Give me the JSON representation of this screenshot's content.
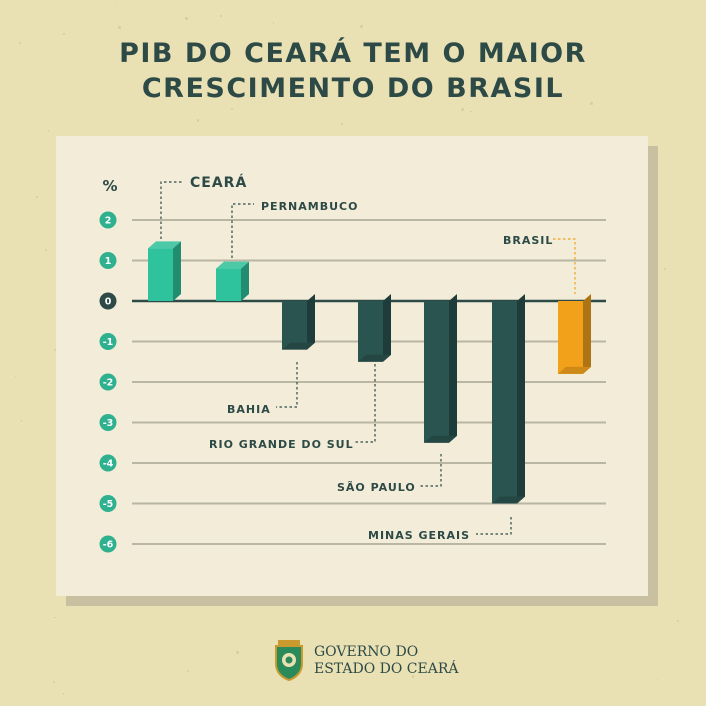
{
  "header": {
    "title_line1": "PIB DO CEARÁ TEM O MAIOR",
    "title_line2": "CRESCIMENTO DO BRASIL"
  },
  "footer": {
    "logo_line1": "GOVERNO DO",
    "logo_line2": "ESTADO DO CEARÁ"
  },
  "colors": {
    "background": "#e9e1b4",
    "panel": "#f2ecd8",
    "text": "#2d4a47",
    "ceara_bar": "#2fc39d",
    "state_bar": "#2a5450",
    "brasil_bar": "#f2a11a",
    "tick_badge": "#2fb18f"
  },
  "chart_data": {
    "type": "bar",
    "ylabel": "%",
    "ylim": [
      -6,
      2
    ],
    "yticks": [
      "2",
      "1",
      "0",
      "-1",
      "-2",
      "-3",
      "-4",
      "-5",
      "-6"
    ],
    "grid": true,
    "categories": [
      "CEARÁ",
      "PERNAMBUCO",
      "BAHIA",
      "RIO GRANDE DO SUL",
      "SÃO PAULO",
      "MINAS GERAIS",
      "BRASIL"
    ],
    "values": [
      1.3,
      0.8,
      -1.2,
      -1.5,
      -3.5,
      -5.0,
      -1.8
    ]
  }
}
